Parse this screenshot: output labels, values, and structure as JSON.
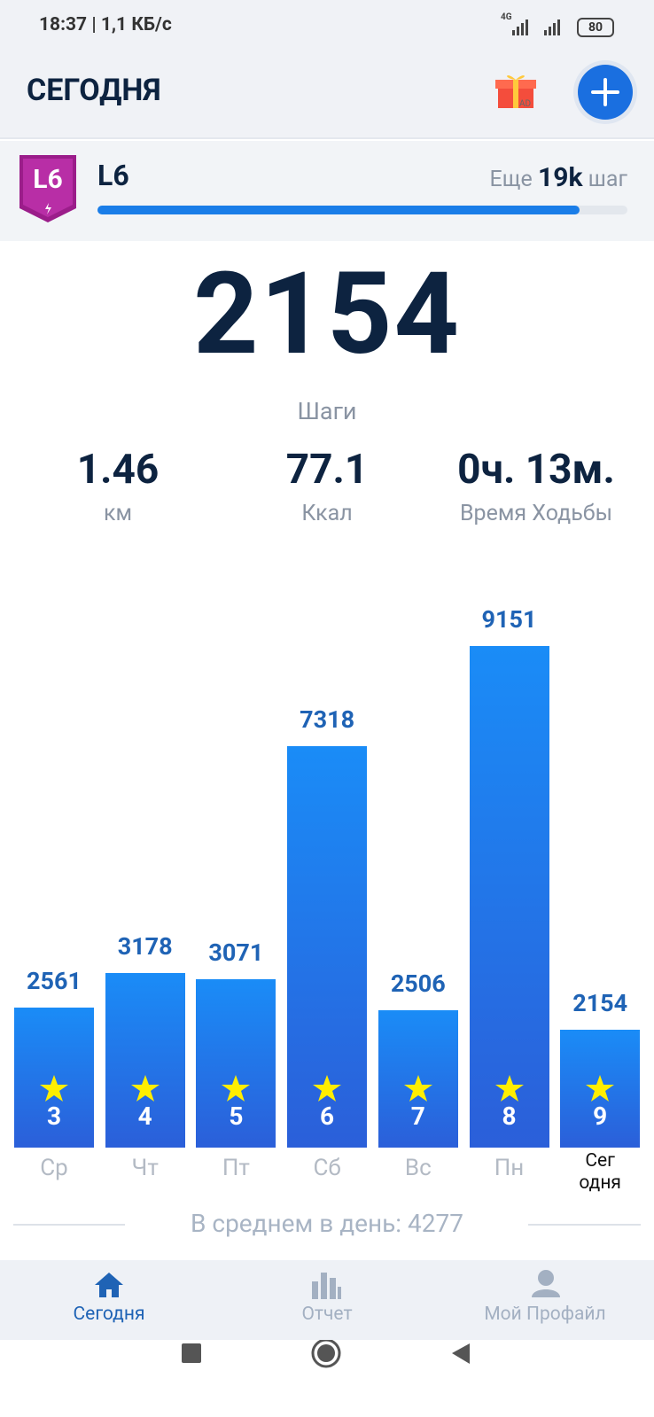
{
  "status_bar": {
    "time": "18:37 | 1,1 КБ/с",
    "network": "4G",
    "battery": "80"
  },
  "header": {
    "title": "СЕГОДНЯ",
    "gift_badge": "AD"
  },
  "level": {
    "badge": "L6",
    "name": "L6",
    "remaining_prefix": "Еще",
    "remaining": "19k",
    "remaining_unit": "шаг",
    "progress": 91
  },
  "today": {
    "steps": "2154",
    "steps_label": "Шаги"
  },
  "stats": [
    {
      "value": "1.46",
      "label": "км"
    },
    {
      "value": "77.1",
      "label": "Ккал"
    },
    {
      "value": "0ч. 13м.",
      "label": "Время Ходьбы"
    }
  ],
  "chart": {
    "type": "bar",
    "categories": [
      "Ср",
      "Чт",
      "Пт",
      "Сб",
      "Вс",
      "Пн",
      "Сег\nодня"
    ],
    "values": [
      2561,
      3178,
      3071,
      7318,
      2506,
      9151,
      2154
    ],
    "badges": [
      3,
      4,
      5,
      6,
      7,
      8,
      9
    ]
  },
  "average": "В среднем в день: 4277",
  "nav": [
    "Сегодня",
    "Отчет",
    "Мой Профайл"
  ]
}
